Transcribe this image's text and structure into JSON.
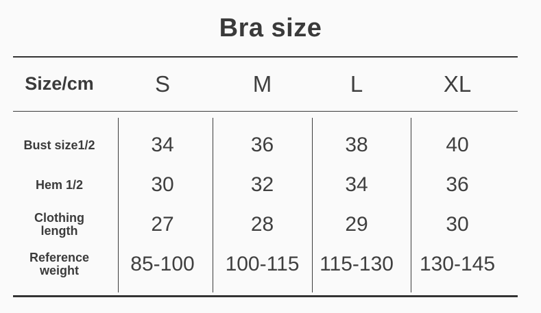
{
  "title": "Bra size",
  "table": {
    "header": {
      "label": "Size/cm",
      "columns": [
        "S",
        "M",
        "L",
        "XL"
      ]
    },
    "rows": [
      {
        "label": "Bust size1/2",
        "values": [
          "34",
          "36",
          "38",
          "40"
        ]
      },
      {
        "label": "Hem 1/2",
        "values": [
          "30",
          "32",
          "34",
          "36"
        ]
      },
      {
        "label": "Clothing\nlength",
        "values": [
          "27",
          "28",
          "29",
          "30"
        ]
      },
      {
        "label": "Reference\nweight",
        "values": [
          "85-100",
          "100-115",
          "115-130",
          "130-145"
        ]
      }
    ]
  },
  "colors": {
    "text": "#3b3b3b",
    "line": "#333333",
    "background": "#fafafa"
  }
}
